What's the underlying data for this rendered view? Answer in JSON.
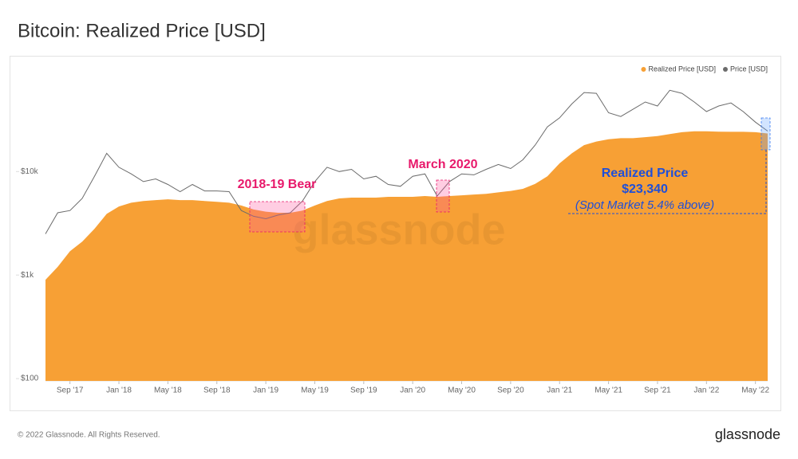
{
  "chart_data": {
    "type": "area_line",
    "title": "Bitcoin: Realized Price [USD]",
    "footer": "© 2022 Glassnode. All Rights Reserved.",
    "brand": "glassnode",
    "watermark": "glassnode",
    "annotations": {
      "bear": "2018-19 Bear",
      "march": "March 2020",
      "realized_title": "Realized Price",
      "realized_value": "$23,340",
      "spot": "(Spot Market 5.4% above)"
    },
    "yscale": "log",
    "ylim": [
      95,
      110000
    ],
    "yticks": [
      {
        "value": 100,
        "label": "$100"
      },
      {
        "value": 1000,
        "label": "$1k"
      },
      {
        "value": 10000,
        "label": "$10k"
      }
    ],
    "xlim": [
      "2017-07",
      "2022-06"
    ],
    "xticks": [
      {
        "value": "2017-09",
        "label": "Sep '17"
      },
      {
        "value": "2018-01",
        "label": "Jan '18"
      },
      {
        "value": "2018-05",
        "label": "May '18"
      },
      {
        "value": "2018-09",
        "label": "Sep '18"
      },
      {
        "value": "2019-01",
        "label": "Jan '19"
      },
      {
        "value": "2019-05",
        "label": "May '19"
      },
      {
        "value": "2019-09",
        "label": "Sep '19"
      },
      {
        "value": "2020-01",
        "label": "Jan '20"
      },
      {
        "value": "2020-05",
        "label": "May '20"
      },
      {
        "value": "2020-09",
        "label": "Sep '20"
      },
      {
        "value": "2021-01",
        "label": "Jan '21"
      },
      {
        "value": "2021-05",
        "label": "May '21"
      },
      {
        "value": "2021-09",
        "label": "Sep '21"
      },
      {
        "value": "2022-01",
        "label": "Jan '22"
      },
      {
        "value": "2022-05",
        "label": "May '22"
      }
    ],
    "x": [
      "2017-07",
      "2017-08",
      "2017-09",
      "2017-10",
      "2017-11",
      "2017-12",
      "2018-01",
      "2018-02",
      "2018-03",
      "2018-04",
      "2018-05",
      "2018-06",
      "2018-07",
      "2018-08",
      "2018-09",
      "2018-10",
      "2018-11",
      "2018-12",
      "2019-01",
      "2019-02",
      "2019-03",
      "2019-04",
      "2019-05",
      "2019-06",
      "2019-07",
      "2019-08",
      "2019-09",
      "2019-10",
      "2019-11",
      "2019-12",
      "2020-01",
      "2020-02",
      "2020-03",
      "2020-04",
      "2020-05",
      "2020-06",
      "2020-07",
      "2020-08",
      "2020-09",
      "2020-10",
      "2020-11",
      "2020-12",
      "2021-01",
      "2021-02",
      "2021-03",
      "2021-04",
      "2021-05",
      "2021-06",
      "2021-07",
      "2021-08",
      "2021-09",
      "2021-10",
      "2021-11",
      "2021-12",
      "2022-01",
      "2022-02",
      "2022-03",
      "2022-04",
      "2022-05",
      "2022-06"
    ],
    "series": [
      {
        "name": "Realized Price [USD]",
        "color": "#f7a035",
        "style": "area",
        "values": [
          900,
          1200,
          1700,
          2100,
          2800,
          3900,
          4600,
          5000,
          5200,
          5300,
          5400,
          5300,
          5300,
          5200,
          5100,
          5000,
          4700,
          4300,
          4100,
          4000,
          4000,
          4200,
          4700,
          5200,
          5500,
          5600,
          5600,
          5600,
          5700,
          5700,
          5700,
          5800,
          5700,
          5800,
          5900,
          6000,
          6100,
          6300,
          6500,
          6800,
          7600,
          9000,
          12000,
          15000,
          18000,
          19500,
          20500,
          21000,
          21000,
          21500,
          22000,
          23000,
          24000,
          24500,
          24500,
          24300,
          24200,
          24200,
          24000,
          23340
        ]
      },
      {
        "name": "Price [USD]",
        "color": "#6b6b6b",
        "style": "line",
        "values": [
          2500,
          4000,
          4200,
          5500,
          9000,
          15000,
          11000,
          9500,
          8000,
          8500,
          7500,
          6400,
          7500,
          6500,
          6500,
          6400,
          4200,
          3700,
          3500,
          3800,
          4000,
          5200,
          8000,
          11000,
          10000,
          10500,
          8500,
          9000,
          7500,
          7200,
          9000,
          9500,
          5800,
          8000,
          9500,
          9300,
          10500,
          11700,
          10700,
          13000,
          18000,
          27000,
          33000,
          45000,
          58000,
          57000,
          37000,
          34000,
          40000,
          47000,
          43000,
          61000,
          57000,
          47000,
          38000,
          43000,
          46000,
          38000,
          30000,
          24600
        ]
      }
    ]
  }
}
